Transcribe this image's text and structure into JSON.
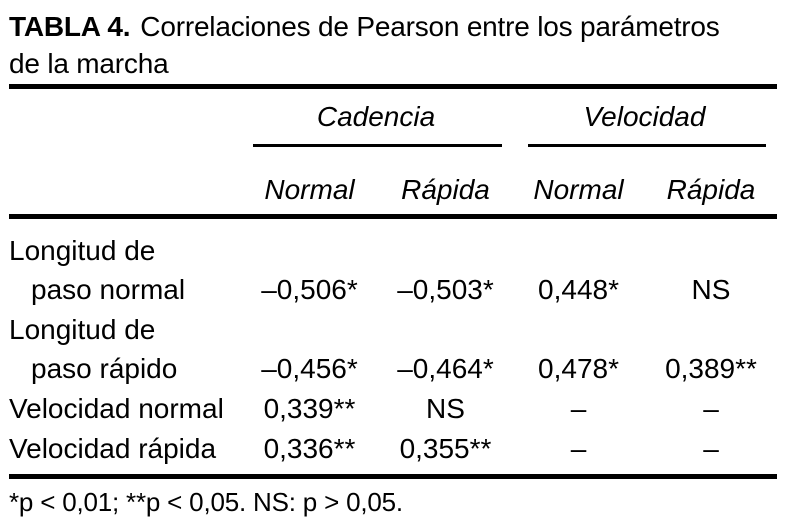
{
  "title": {
    "label": "TABLA 4.",
    "text": "Correlaciones de Pearson entre los parámetros",
    "text_line2": "de la marcha"
  },
  "table": {
    "column_groups": [
      {
        "label": "Cadencia"
      },
      {
        "label": "Velocidad"
      }
    ],
    "sub_headers": [
      "Normal",
      "Rápida",
      "Normal",
      "Rápida"
    ],
    "rows": [
      {
        "label_line1": "Longitud de",
        "label_line2": "paso normal",
        "values": [
          "–0,506*",
          "–0,503*",
          "0,448*",
          "NS"
        ]
      },
      {
        "label_line1": "Longitud de",
        "label_line2": "paso rápido",
        "values": [
          "–0,456*",
          "–0,464*",
          "0,478*",
          "0,389**"
        ]
      },
      {
        "label": "Velocidad normal",
        "values": [
          "0,339**",
          "NS",
          "–",
          "–"
        ]
      },
      {
        "label": "Velocidad rápida",
        "values": [
          "0,336**",
          "0,355**",
          "–",
          "–"
        ]
      }
    ],
    "footnote": "*p < 0,01; **p < 0,05. NS: p > 0,05."
  },
  "colors": {
    "text": "#000000",
    "background": "#ffffff",
    "rule": "#000000"
  }
}
